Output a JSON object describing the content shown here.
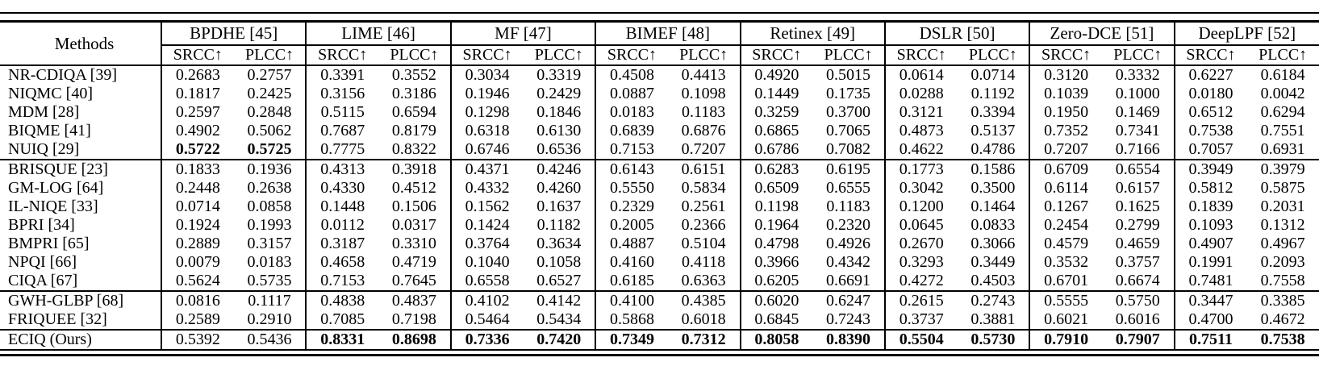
{
  "colors": {
    "text": "#000000",
    "background": "#ffffff",
    "rules": "#000000"
  },
  "table": {
    "methods_header": "Methods",
    "metric_labels": [
      "SRCC↑",
      "PLCC↑"
    ],
    "group_columns": [
      {
        "label": "BPDHE [45]"
      },
      {
        "label": "LIME [46]"
      },
      {
        "label": "MF [47]"
      },
      {
        "label": "BIMEF [48]"
      },
      {
        "label": "Retinex [49]"
      },
      {
        "label": "DSLR [50]"
      },
      {
        "label": "Zero-DCE [51]"
      },
      {
        "label": "DeepLPF [52]"
      }
    ],
    "rows": [
      {
        "method": "NR-CDIQA [39]",
        "rule_above": false,
        "bold": [],
        "values": [
          "0.2683",
          "0.2757",
          "0.3391",
          "0.3552",
          "0.3034",
          "0.3319",
          "0.4508",
          "0.4413",
          "0.4920",
          "0.5015",
          "0.0614",
          "0.0714",
          "0.3120",
          "0.3332",
          "0.6227",
          "0.6184"
        ]
      },
      {
        "method": "NIQMC [40]",
        "rule_above": false,
        "bold": [],
        "values": [
          "0.1817",
          "0.2425",
          "0.3156",
          "0.3186",
          "0.1946",
          "0.2429",
          "0.0887",
          "0.1098",
          "0.1449",
          "0.1735",
          "0.0288",
          "0.1192",
          "0.1039",
          "0.1000",
          "0.0180",
          "0.0042"
        ]
      },
      {
        "method": "MDM [28]",
        "rule_above": false,
        "bold": [],
        "values": [
          "0.2597",
          "0.2848",
          "0.5115",
          "0.6594",
          "0.1298",
          "0.1846",
          "0.0183",
          "0.1183",
          "0.3259",
          "0.3700",
          "0.3121",
          "0.3394",
          "0.1950",
          "0.1469",
          "0.6512",
          "0.6294"
        ]
      },
      {
        "method": "BIQME [41]",
        "rule_above": false,
        "bold": [],
        "values": [
          "0.4902",
          "0.5062",
          "0.7687",
          "0.8179",
          "0.6318",
          "0.6130",
          "0.6839",
          "0.6876",
          "0.6865",
          "0.7065",
          "0.4873",
          "0.5137",
          "0.7352",
          "0.7341",
          "0.7538",
          "0.7551"
        ]
      },
      {
        "method": "NUIQ [29]",
        "rule_above": false,
        "bold": [
          0,
          1
        ],
        "values": [
          "0.5722",
          "0.5725",
          "0.7775",
          "0.8322",
          "0.6746",
          "0.6536",
          "0.7153",
          "0.7207",
          "0.6786",
          "0.7082",
          "0.4622",
          "0.4786",
          "0.7207",
          "0.7166",
          "0.7057",
          "0.6931"
        ]
      },
      {
        "method": "BRISQUE [23]",
        "rule_above": true,
        "bold": [],
        "values": [
          "0.1833",
          "0.1936",
          "0.4313",
          "0.3918",
          "0.4371",
          "0.4246",
          "0.6143",
          "0.6151",
          "0.6283",
          "0.6195",
          "0.1773",
          "0.1586",
          "0.6709",
          "0.6554",
          "0.3949",
          "0.3979"
        ]
      },
      {
        "method": "GM-LOG [64]",
        "rule_above": false,
        "bold": [],
        "values": [
          "0.2448",
          "0.2638",
          "0.4330",
          "0.4512",
          "0.4332",
          "0.4260",
          "0.5550",
          "0.5834",
          "0.6509",
          "0.6555",
          "0.3042",
          "0.3500",
          "0.6114",
          "0.6157",
          "0.5812",
          "0.5875"
        ]
      },
      {
        "method": "IL-NIQE [33]",
        "rule_above": false,
        "bold": [],
        "values": [
          "0.0714",
          "0.0858",
          "0.1448",
          "0.1506",
          "0.1562",
          "0.1637",
          "0.2329",
          "0.2561",
          "0.1198",
          "0.1183",
          "0.1200",
          "0.1464",
          "0.1267",
          "0.1625",
          "0.1839",
          "0.2031"
        ]
      },
      {
        "method": "BPRI [34]",
        "rule_above": false,
        "bold": [],
        "values": [
          "0.1924",
          "0.1993",
          "0.0112",
          "0.0317",
          "0.1424",
          "0.1182",
          "0.2005",
          "0.2366",
          "0.1964",
          "0.2320",
          "0.0645",
          "0.0833",
          "0.2454",
          "0.2799",
          "0.1093",
          "0.1312"
        ]
      },
      {
        "method": "BMPRI [65]",
        "rule_above": false,
        "bold": [],
        "values": [
          "0.2889",
          "0.3157",
          "0.3187",
          "0.3310",
          "0.3764",
          "0.3634",
          "0.4887",
          "0.5104",
          "0.4798",
          "0.4926",
          "0.2670",
          "0.3066",
          "0.4579",
          "0.4659",
          "0.4907",
          "0.4967"
        ]
      },
      {
        "method": "NPQI [66]",
        "rule_above": false,
        "bold": [],
        "values": [
          "0.0079",
          "0.0183",
          "0.4658",
          "0.4719",
          "0.1040",
          "0.1058",
          "0.4160",
          "0.4118",
          "0.3966",
          "0.4342",
          "0.3293",
          "0.3449",
          "0.3532",
          "0.3757",
          "0.1991",
          "0.2093"
        ]
      },
      {
        "method": "CIQA [67]",
        "rule_above": false,
        "bold": [],
        "values": [
          "0.5624",
          "0.5735",
          "0.7153",
          "0.7645",
          "0.6558",
          "0.6527",
          "0.6185",
          "0.6363",
          "0.6205",
          "0.6691",
          "0.4272",
          "0.4503",
          "0.6701",
          "0.6674",
          "0.7481",
          "0.7558"
        ]
      },
      {
        "method": "GWH-GLBP [68]",
        "rule_above": true,
        "bold": [],
        "values": [
          "0.0816",
          "0.1117",
          "0.4838",
          "0.4837",
          "0.4102",
          "0.4142",
          "0.4100",
          "0.4385",
          "0.6020",
          "0.6247",
          "0.2615",
          "0.2743",
          "0.5555",
          "0.5750",
          "0.3447",
          "0.3385"
        ]
      },
      {
        "method": "FRIQUEE [32]",
        "rule_above": false,
        "bold": [],
        "values": [
          "0.2589",
          "0.2910",
          "0.7085",
          "0.7198",
          "0.5464",
          "0.5434",
          "0.5868",
          "0.6018",
          "0.6845",
          "0.7243",
          "0.3737",
          "0.3881",
          "0.6021",
          "0.6016",
          "0.4700",
          "0.4672"
        ]
      },
      {
        "method": "ECIQ (Ours)",
        "rule_above": true,
        "bold": [
          2,
          3,
          4,
          5,
          6,
          7,
          8,
          9,
          10,
          11,
          12,
          13,
          14,
          15
        ],
        "values": [
          "0.5392",
          "0.5436",
          "0.8331",
          "0.8698",
          "0.7336",
          "0.7420",
          "0.7349",
          "0.7312",
          "0.8058",
          "0.8390",
          "0.5504",
          "0.5730",
          "0.7910",
          "0.7907",
          "0.7511",
          "0.7538"
        ]
      }
    ]
  }
}
